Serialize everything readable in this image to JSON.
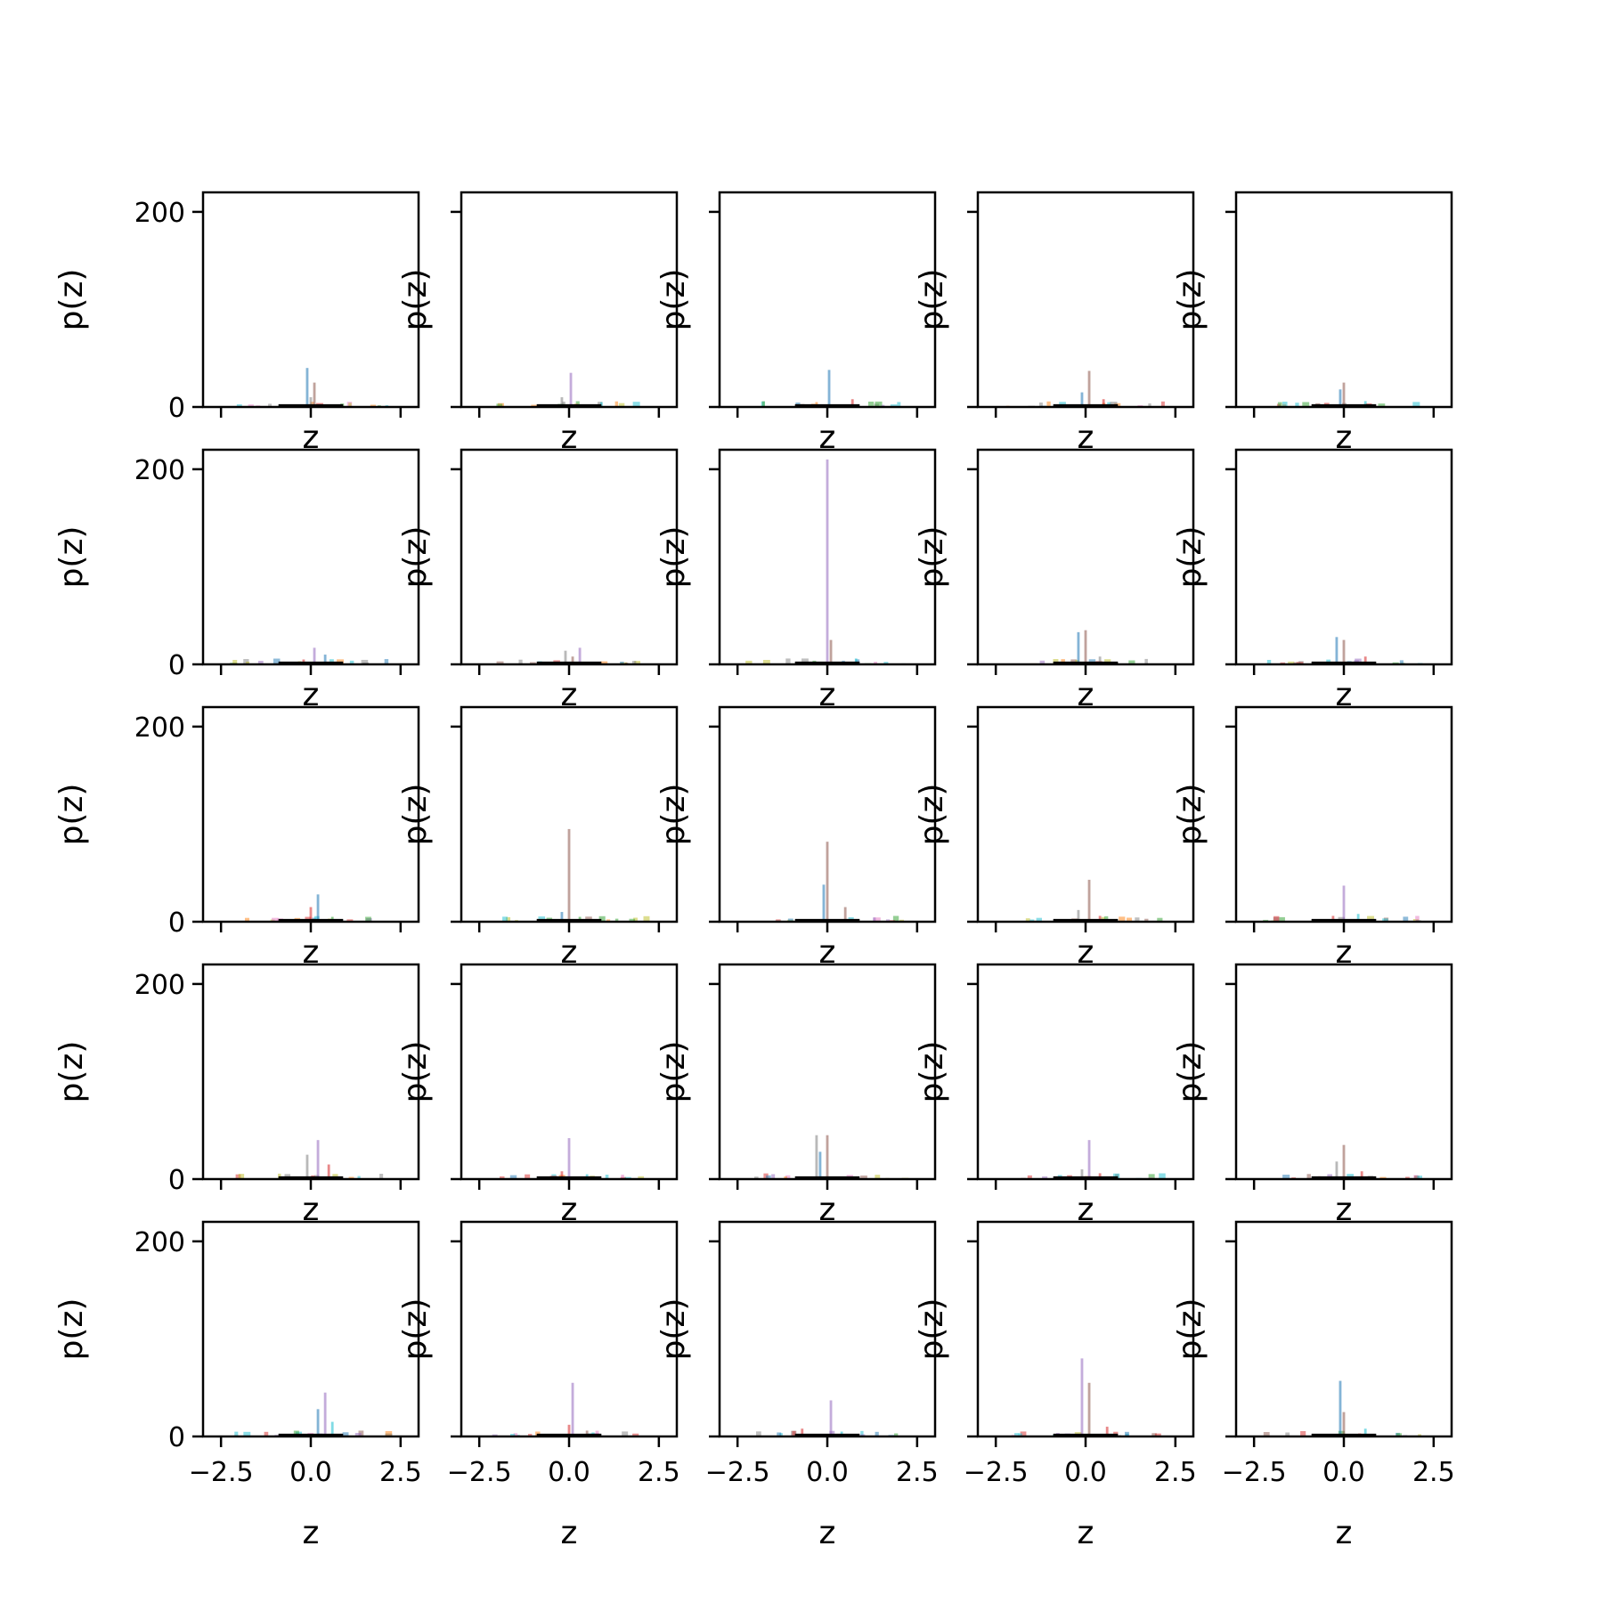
{
  "chart_data": {
    "type": "histogram-grid",
    "layout": {
      "rows": 5,
      "cols": 5,
      "sharex": true,
      "sharey": true
    },
    "xlabel": "z",
    "ylabel": "p(z)",
    "xlim": [
      -3.0,
      3.0
    ],
    "ylim": [
      0,
      220
    ],
    "xticks": [
      -2.5,
      0.0,
      2.5
    ],
    "xtick_labels": [
      "−2.5",
      "0.0",
      "2.5"
    ],
    "yticks": [
      0,
      200
    ],
    "ytick_labels": [
      "0",
      "200"
    ],
    "grid": false,
    "legend": "none",
    "colors": [
      "#1f77b4",
      "#ff7f0e",
      "#2ca02c",
      "#d62728",
      "#9467bd",
      "#8c564b",
      "#e377c2",
      "#7f7f7f",
      "#bcbd22",
      "#17becf"
    ],
    "panels": [
      {
        "peaks": [
          {
            "x": -0.1,
            "y": 40,
            "c": 0
          },
          {
            "x": 0.1,
            "y": 25,
            "c": 5
          },
          {
            "x": 0.0,
            "y": 10,
            "c": 7
          }
        ]
      },
      {
        "peaks": [
          {
            "x": 0.05,
            "y": 35,
            "c": 4
          },
          {
            "x": -0.2,
            "y": 10,
            "c": 7
          },
          {
            "x": 0.9,
            "y": 5,
            "c": 9
          }
        ]
      },
      {
        "peaks": [
          {
            "x": 0.05,
            "y": 38,
            "c": 0
          },
          {
            "x": 0.7,
            "y": 8,
            "c": 3
          },
          {
            "x": -0.3,
            "y": 5,
            "c": 1
          }
        ]
      },
      {
        "peaks": [
          {
            "x": 0.1,
            "y": 37,
            "c": 5
          },
          {
            "x": -0.1,
            "y": 15,
            "c": 0
          },
          {
            "x": 0.5,
            "y": 8,
            "c": 3
          }
        ]
      },
      {
        "peaks": [
          {
            "x": 0.0,
            "y": 25,
            "c": 5
          },
          {
            "x": -0.1,
            "y": 18,
            "c": 0
          },
          {
            "x": 0.6,
            "y": 6,
            "c": 9
          }
        ]
      },
      {
        "peaks": [
          {
            "x": 0.1,
            "y": 17,
            "c": 4
          },
          {
            "x": 0.4,
            "y": 10,
            "c": 0
          },
          {
            "x": -0.2,
            "y": 5,
            "c": 3
          }
        ]
      },
      {
        "peaks": [
          {
            "x": 0.3,
            "y": 17,
            "c": 4
          },
          {
            "x": -0.1,
            "y": 14,
            "c": 7
          },
          {
            "x": 0.1,
            "y": 8,
            "c": 5
          }
        ]
      },
      {
        "peaks": [
          {
            "x": 0.0,
            "y": 210,
            "c": 4
          },
          {
            "x": 0.1,
            "y": 25,
            "c": 5
          },
          {
            "x": 0.8,
            "y": 6,
            "c": 9
          }
        ]
      },
      {
        "peaks": [
          {
            "x": -0.2,
            "y": 33,
            "c": 0
          },
          {
            "x": 0.0,
            "y": 35,
            "c": 5
          },
          {
            "x": 0.4,
            "y": 8,
            "c": 7
          }
        ]
      },
      {
        "peaks": [
          {
            "x": -0.2,
            "y": 28,
            "c": 0
          },
          {
            "x": 0.0,
            "y": 25,
            "c": 5
          },
          {
            "x": 0.6,
            "y": 8,
            "c": 3
          }
        ]
      },
      {
        "peaks": [
          {
            "x": 0.2,
            "y": 28,
            "c": 0
          },
          {
            "x": 0.0,
            "y": 15,
            "c": 3
          },
          {
            "x": 0.6,
            "y": 5,
            "c": 2
          }
        ]
      },
      {
        "peaks": [
          {
            "x": 0.0,
            "y": 95,
            "c": 5
          },
          {
            "x": -0.2,
            "y": 10,
            "c": 0
          },
          {
            "x": 0.3,
            "y": 5,
            "c": 2
          }
        ]
      },
      {
        "peaks": [
          {
            "x": 0.0,
            "y": 82,
            "c": 5
          },
          {
            "x": -0.1,
            "y": 38,
            "c": 0
          },
          {
            "x": 0.5,
            "y": 15,
            "c": 5
          }
        ]
      },
      {
        "peaks": [
          {
            "x": 0.1,
            "y": 43,
            "c": 5
          },
          {
            "x": -0.2,
            "y": 12,
            "c": 7
          },
          {
            "x": 0.4,
            "y": 6,
            "c": 3
          }
        ]
      },
      {
        "peaks": [
          {
            "x": 0.0,
            "y": 37,
            "c": 4
          },
          {
            "x": 0.4,
            "y": 8,
            "c": 9
          },
          {
            "x": -0.3,
            "y": 6,
            "c": 3
          }
        ]
      },
      {
        "peaks": [
          {
            "x": 0.2,
            "y": 40,
            "c": 4
          },
          {
            "x": -0.1,
            "y": 25,
            "c": 7
          },
          {
            "x": 0.5,
            "y": 15,
            "c": 3
          }
        ]
      },
      {
        "peaks": [
          {
            "x": 0.0,
            "y": 42,
            "c": 4
          },
          {
            "x": -0.2,
            "y": 8,
            "c": 3
          },
          {
            "x": 0.5,
            "y": 5,
            "c": 9
          }
        ]
      },
      {
        "peaks": [
          {
            "x": -0.3,
            "y": 45,
            "c": 7
          },
          {
            "x": 0.0,
            "y": 45,
            "c": 5
          },
          {
            "x": -0.2,
            "y": 28,
            "c": 0
          }
        ]
      },
      {
        "peaks": [
          {
            "x": 0.1,
            "y": 40,
            "c": 4
          },
          {
            "x": -0.1,
            "y": 10,
            "c": 7
          },
          {
            "x": 0.4,
            "y": 6,
            "c": 3
          }
        ]
      },
      {
        "peaks": [
          {
            "x": 0.0,
            "y": 35,
            "c": 5
          },
          {
            "x": -0.2,
            "y": 18,
            "c": 7
          },
          {
            "x": 0.5,
            "y": 8,
            "c": 3
          }
        ]
      },
      {
        "peaks": [
          {
            "x": 0.4,
            "y": 45,
            "c": 4
          },
          {
            "x": 0.2,
            "y": 28,
            "c": 0
          },
          {
            "x": 0.6,
            "y": 15,
            "c": 9
          }
        ]
      },
      {
        "peaks": [
          {
            "x": 0.1,
            "y": 55,
            "c": 4
          },
          {
            "x": 0.0,
            "y": 12,
            "c": 3
          },
          {
            "x": 0.5,
            "y": 6,
            "c": 5
          }
        ]
      },
      {
        "peaks": [
          {
            "x": 0.1,
            "y": 37,
            "c": 4
          },
          {
            "x": -0.7,
            "y": 8,
            "c": 3
          },
          {
            "x": 0.4,
            "y": 5,
            "c": 9
          }
        ]
      },
      {
        "peaks": [
          {
            "x": -0.1,
            "y": 80,
            "c": 4
          },
          {
            "x": 0.1,
            "y": 55,
            "c": 5
          },
          {
            "x": 0.6,
            "y": 10,
            "c": 3
          }
        ]
      },
      {
        "peaks": [
          {
            "x": -0.1,
            "y": 57,
            "c": 0
          },
          {
            "x": 0.0,
            "y": 25,
            "c": 5
          },
          {
            "x": 0.6,
            "y": 8,
            "c": 9
          }
        ]
      }
    ]
  }
}
